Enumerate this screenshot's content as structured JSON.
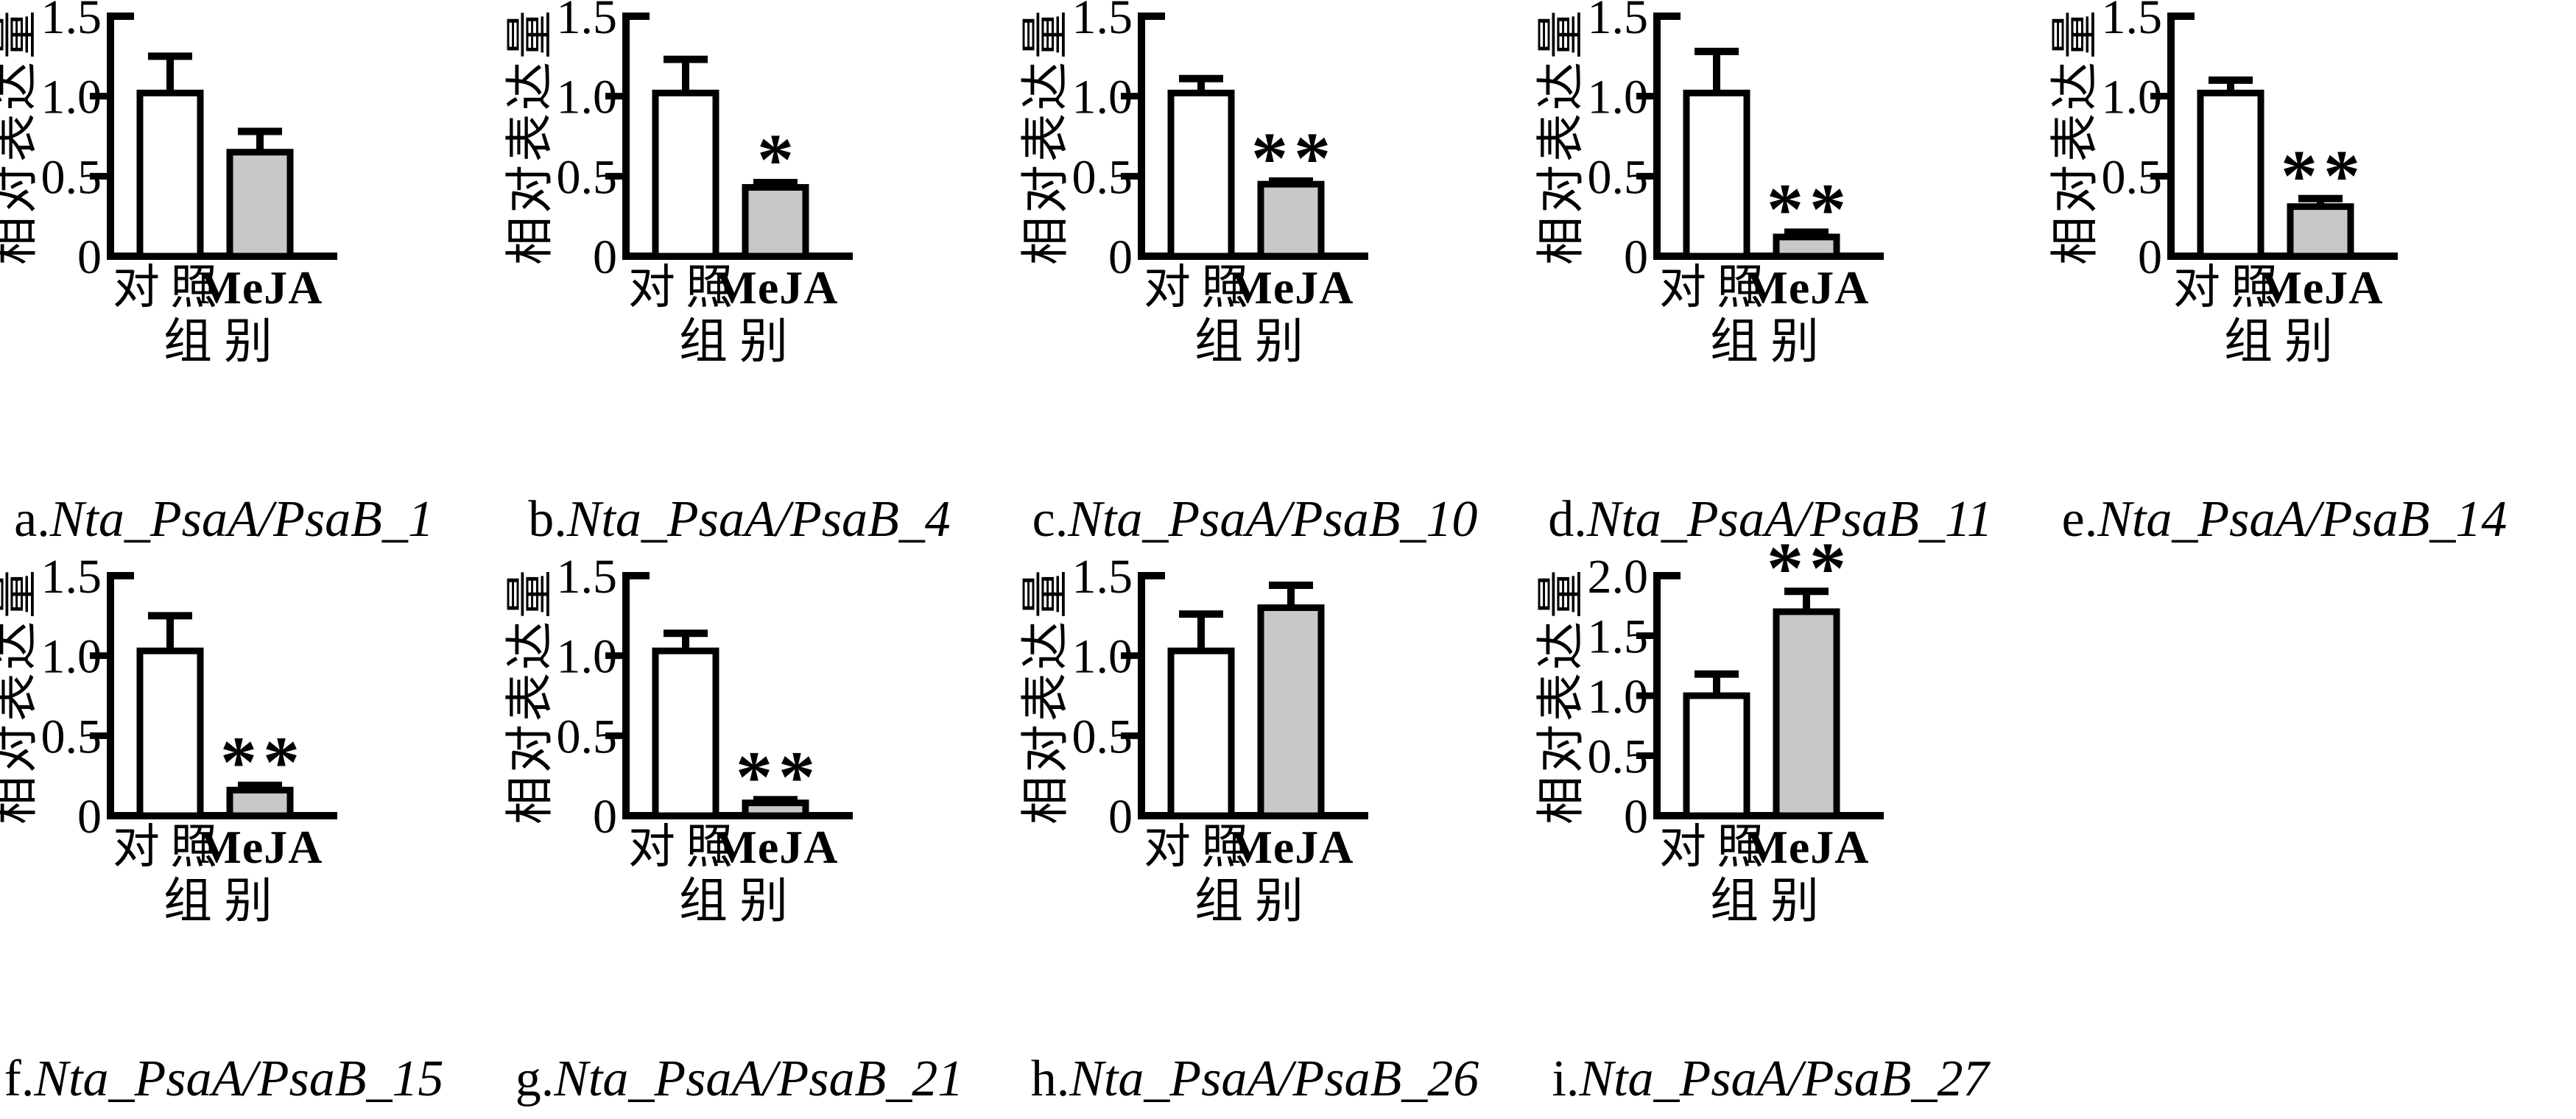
{
  "figure": {
    "description": "Nine-panel qPCR bar figure, relative expression of Nta_PsaA/PsaB genes, control vs MeJA treatment",
    "rows": 2,
    "cols_row1": 5,
    "cols_row2": 4
  },
  "colors": {
    "control_bar_fill": "#ffffff",
    "meja_bar_fill": "#c8c8c8",
    "stroke": "#000000",
    "background": "#ffffff"
  },
  "chart_data": [
    {
      "type": "bar",
      "panel": "a",
      "panel_label": "a.",
      "gene": "Nta_PsaA/PsaB_1",
      "title": "a.Nta_PsaA/PsaB_1",
      "ylabel": "相对表达量",
      "xlabel": "组别",
      "categories": [
        "对照",
        "MeJA"
      ],
      "values": [
        1.02,
        0.65
      ],
      "errors": [
        0.23,
        0.13
      ],
      "significance": "",
      "ylim": [
        0,
        1.5
      ],
      "yticks": [
        "0",
        "0.5",
        "1.0",
        "1.5"
      ],
      "legend": "none",
      "grid": false
    },
    {
      "type": "bar",
      "panel": "b",
      "panel_label": "b.",
      "gene": "Nta_PsaA/PsaB_4",
      "title": "b.Nta_PsaA/PsaB_4",
      "ylabel": "相对表达量",
      "xlabel": "组别",
      "categories": [
        "对照",
        "MeJA"
      ],
      "values": [
        1.02,
        0.43
      ],
      "errors": [
        0.21,
        0.03
      ],
      "significance": "*",
      "ylim": [
        0,
        1.5
      ],
      "yticks": [
        "0",
        "0.5",
        "1.0",
        "1.5"
      ],
      "legend": "none",
      "grid": false
    },
    {
      "type": "bar",
      "panel": "c",
      "panel_label": "c.",
      "gene": "Nta_PsaA/PsaB_10",
      "title": "c.Nta_PsaA/PsaB_10",
      "ylabel": "相对表达量",
      "xlabel": "组别",
      "categories": [
        "对照",
        "MeJA"
      ],
      "values": [
        1.02,
        0.45
      ],
      "errors": [
        0.09,
        0.02
      ],
      "significance": "**",
      "ylim": [
        0,
        1.5
      ],
      "yticks": [
        "0",
        "0.5",
        "1.0",
        "1.5"
      ],
      "legend": "none",
      "grid": false
    },
    {
      "type": "bar",
      "panel": "d",
      "panel_label": "d.",
      "gene": "Nta_PsaA/PsaB_11",
      "title": "d.Nta_PsaA/PsaB_11",
      "ylabel": "相对表达量",
      "xlabel": "组别",
      "categories": [
        "对照",
        "MeJA"
      ],
      "values": [
        1.02,
        0.12
      ],
      "errors": [
        0.26,
        0.03
      ],
      "significance": "**",
      "ylim": [
        0,
        1.5
      ],
      "yticks": [
        "0",
        "0.5",
        "1.0",
        "1.5"
      ],
      "legend": "none",
      "grid": false
    },
    {
      "type": "bar",
      "panel": "e",
      "panel_label": "e.",
      "gene": "Nta_PsaA/PsaB_14",
      "title": "e.Nta_PsaA/PsaB_14",
      "ylabel": "相对表达量",
      "xlabel": "组别",
      "categories": [
        "对照",
        "MeJA"
      ],
      "values": [
        1.02,
        0.31
      ],
      "errors": [
        0.08,
        0.05
      ],
      "significance": "**",
      "ylim": [
        0,
        1.5
      ],
      "yticks": [
        "0",
        "0.5",
        "1.0",
        "1.5"
      ],
      "legend": "none",
      "grid": false
    },
    {
      "type": "bar",
      "panel": "f",
      "panel_label": "f.",
      "gene": "Nta_PsaA/PsaB_15",
      "title": "f.Nta_PsaA/PsaB_15",
      "ylabel": "相对表达量",
      "xlabel": "组别",
      "categories": [
        "对照",
        "MeJA"
      ],
      "values": [
        1.03,
        0.16
      ],
      "errors": [
        0.22,
        0.03
      ],
      "significance": "**",
      "ylim": [
        0,
        1.5
      ],
      "yticks": [
        "0",
        "0.5",
        "1.0",
        "1.5"
      ],
      "legend": "none",
      "grid": false
    },
    {
      "type": "bar",
      "panel": "g",
      "panel_label": "g.",
      "gene": "Nta_PsaA/PsaB_21",
      "title": "g.Nta_PsaA/PsaB_21",
      "ylabel": "相对表达量",
      "xlabel": "组别",
      "categories": [
        "对照",
        "MeJA"
      ],
      "values": [
        1.03,
        0.08
      ],
      "errors": [
        0.11,
        0.02
      ],
      "significance": "**",
      "ylim": [
        0,
        1.5
      ],
      "yticks": [
        "0",
        "0.5",
        "1.0",
        "1.5"
      ],
      "legend": "none",
      "grid": false
    },
    {
      "type": "bar",
      "panel": "h",
      "panel_label": "h.",
      "gene": "Nta_PsaA/PsaB_26",
      "title": "h.Nta_PsaA/PsaB_26",
      "ylabel": "相对表达量",
      "xlabel": "组别",
      "categories": [
        "对照",
        "MeJA"
      ],
      "values": [
        1.03,
        1.3
      ],
      "errors": [
        0.23,
        0.14
      ],
      "significance": "",
      "ylim": [
        0,
        1.5
      ],
      "yticks": [
        "0",
        "0.5",
        "1.0",
        "1.5"
      ],
      "legend": "none",
      "grid": false
    },
    {
      "type": "bar",
      "panel": "i",
      "panel_label": "i.",
      "gene": "Nta_PsaA/PsaB_27",
      "title": "i.Nta_PsaA/PsaB_27",
      "ylabel": "相对表达量",
      "xlabel": "组别",
      "categories": [
        "对照",
        "MeJA"
      ],
      "values": [
        1.0,
        1.7
      ],
      "errors": [
        0.18,
        0.17
      ],
      "significance": "**",
      "ylim": [
        0,
        2.0
      ],
      "yticks": [
        "0",
        "0.5",
        "1.0",
        "1.5",
        "2.0"
      ],
      "legend": "none",
      "grid": false
    }
  ]
}
